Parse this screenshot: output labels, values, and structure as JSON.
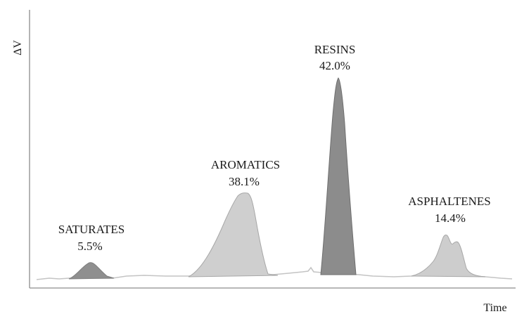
{
  "chart_data": {
    "type": "area",
    "title": "",
    "xlabel": "Time",
    "ylabel": "ΔV",
    "grid": false,
    "legend": "none",
    "peaks": [
      {
        "name": "SATURATES",
        "percent_label": "5.5%",
        "value": 5.5,
        "color": "#8f8f8f",
        "outline": "#7f7f7f"
      },
      {
        "name": "AROMATICS",
        "percent_label": "38.1%",
        "value": 38.1,
        "color": "#cfcfcf",
        "outline": "#a7a7a7"
      },
      {
        "name": "RESINS",
        "percent_label": "42.0%",
        "value": 42.0,
        "color": "#8c8c8c",
        "outline": "#6e6e6e"
      },
      {
        "name": "ASPHALTENES",
        "percent_label": "14.4%",
        "value": 14.4,
        "color": "#cdcdcd",
        "outline": "#a8a8a8"
      }
    ]
  }
}
